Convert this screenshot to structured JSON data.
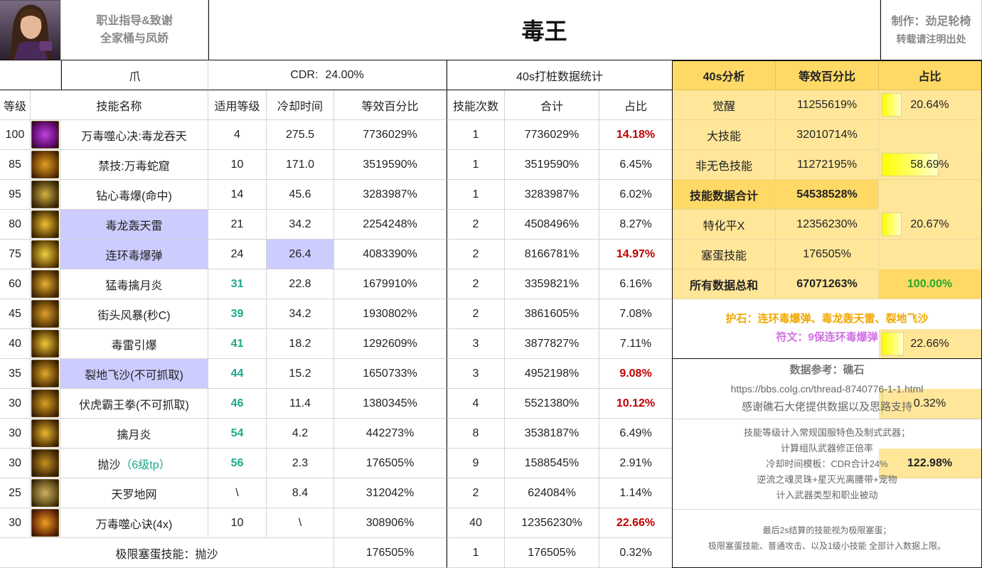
{
  "header": {
    "guide_line1": "职业指导&致谢",
    "guide_line2": "全家桶与凤娇",
    "title": "毒王",
    "author": "制作：劲足轮椅",
    "repost_note": "转载请注明出处"
  },
  "subheader": {
    "weapon": "爪",
    "cdr_label": "CDR:",
    "cdr_value": "24.00%",
    "stats_label": "40s打桩数据统计"
  },
  "columns": {
    "level": "等级",
    "skill_name": "技能名称",
    "req_level": "适用等级",
    "cooldown": "冷却时间",
    "percent": "等效百分比",
    "count": "技能次数",
    "total": "合计",
    "share": "占比"
  },
  "rows": [
    {
      "level": "100",
      "name": "万毒噬心决:毒龙吞天",
      "req": "4",
      "req_style": "",
      "cd": "275.5",
      "pct": "7736029%",
      "count": "1",
      "total": "7736029%",
      "share": "14.18%",
      "share_style": "red",
      "icon_colors": [
        "#5a0a6a",
        "#c040e0"
      ]
    },
    {
      "level": "85",
      "name": "禁技:万毒蛇窟",
      "req": "10",
      "req_style": "",
      "cd": "171.0",
      "pct": "3519590%",
      "count": "1",
      "total": "3519590%",
      "share": "6.45%",
      "share_style": "",
      "icon_colors": [
        "#6a3a08",
        "#e0a020"
      ]
    },
    {
      "level": "95",
      "name": "钻心毒爆(命中)",
      "req": "14",
      "req_style": "",
      "cd": "45.6",
      "pct": "3283987%",
      "count": "1",
      "total": "3283987%",
      "share": "6.02%",
      "share_style": "",
      "icon_colors": [
        "#4a3a10",
        "#d8b040"
      ]
    },
    {
      "level": "80",
      "name": "毒龙轰天雷",
      "req": "21",
      "req_style": "",
      "cd": "34.2",
      "pct": "2254248%",
      "count": "2",
      "total": "4508496%",
      "share": "8.27%",
      "share_style": "",
      "icon_colors": [
        "#5a4008",
        "#f0c030"
      ],
      "hl_name": true
    },
    {
      "level": "75",
      "name": "连环毒爆弹",
      "req": "24",
      "req_style": "",
      "cd": "26.4",
      "pct": "4083390%",
      "count": "2",
      "total": "8166781%",
      "share": "14.97%",
      "share_style": "red",
      "icon_colors": [
        "#6a4a08",
        "#f0d040"
      ],
      "hl_name": true,
      "hl_cd": true
    },
    {
      "level": "60",
      "name": "猛毒擒月炎",
      "req": "31",
      "req_style": "teal",
      "cd": "22.8",
      "pct": "1679910%",
      "count": "2",
      "total": "3359821%",
      "share": "6.16%",
      "share_style": "",
      "icon_colors": [
        "#5a3a08",
        "#e8b030"
      ]
    },
    {
      "level": "45",
      "name": "街头风暴(秒C)",
      "req": "39",
      "req_style": "teal",
      "cd": "34.2",
      "pct": "1930802%",
      "count": "2",
      "total": "3861605%",
      "share": "7.08%",
      "share_style": "",
      "icon_colors": [
        "#5a3a08",
        "#e0a028"
      ]
    },
    {
      "level": "40",
      "name": "毒雷引爆",
      "req": "41",
      "req_style": "teal",
      "cd": "18.2",
      "pct": "1292609%",
      "count": "3",
      "total": "3877827%",
      "share": "7.11%",
      "share_style": "",
      "icon_colors": [
        "#604008",
        "#f0c838"
      ]
    },
    {
      "level": "35",
      "name": "裂地飞沙(不可抓取)",
      "req": "44",
      "req_style": "teal",
      "cd": "15.2",
      "pct": "1650733%",
      "count": "3",
      "total": "4952198%",
      "share": "9.08%",
      "share_style": "red",
      "icon_colors": [
        "#5a3808",
        "#e0a828"
      ],
      "hl_name": true
    },
    {
      "level": "30",
      "name": "伏虎霸王拳(不可抓取)",
      "req": "46",
      "req_style": "teal",
      "cd": "11.4",
      "pct": "1380345%",
      "count": "4",
      "total": "5521380%",
      "share": "10.12%",
      "share_style": "red",
      "icon_colors": [
        "#5a3808",
        "#d8a020"
      ]
    },
    {
      "level": "30",
      "name": "擒月炎",
      "req": "54",
      "req_style": "teal",
      "cd": "4.2",
      "pct": "442273%",
      "count": "8",
      "total": "3538187%",
      "share": "6.49%",
      "share_style": "",
      "icon_colors": [
        "#5a3a08",
        "#e8b830"
      ]
    },
    {
      "level": "30",
      "name": "抛沙",
      "name_extra": "（6级tp）",
      "req": "56",
      "req_style": "teal",
      "cd": "2.3",
      "pct": "176505%",
      "count": "9",
      "total": "1588545%",
      "share": "2.91%",
      "share_style": "",
      "icon_colors": [
        "#4a3008",
        "#c89020"
      ]
    },
    {
      "level": "25",
      "name": "天罗地网",
      "req": "\\",
      "req_style": "",
      "cd": "8.4",
      "pct": "312042%",
      "count": "2",
      "total": "624084%",
      "share": "1.14%",
      "share_style": "",
      "icon_colors": [
        "#5a4818",
        "#d0b060"
      ]
    },
    {
      "level": "30",
      "name": "万毒噬心诀(4x)",
      "req": "10",
      "req_style": "",
      "cd": "\\",
      "pct": "308906%",
      "count": "40",
      "total": "12356230%",
      "share": "22.66%",
      "share_style": "red",
      "icon_colors": [
        "#6a2a08",
        "#f0a020"
      ]
    }
  ],
  "footer_row": {
    "label": "极限塞蛋技能：抛沙",
    "pct": "176505%",
    "count": "1",
    "total": "176505%",
    "share": "0.32%"
  },
  "analysis": {
    "title": "40s分析",
    "col_percent": "等效百分比",
    "col_share": "占比",
    "rows": [
      {
        "label": "觉醒",
        "value": "11255619%",
        "share": "20.64%",
        "fill": 0.2064
      },
      {
        "label": "大技能",
        "value": "32010714%",
        "share": "58.69%",
        "fill": 0.5869
      },
      {
        "label": "非无色技能",
        "value": "11272195%",
        "share": "20.67%",
        "fill": 0.2067
      },
      {
        "label": "技能数据合计",
        "value": "54538528%",
        "share": "100.00%",
        "fill": 0,
        "total": true
      },
      {
        "label": "特化平X",
        "value": "12356230%",
        "share": "22.66%",
        "fill": 0.2266
      },
      {
        "label": "塞蛋技能",
        "value": "176505%",
        "share": "0.32%",
        "fill": 0.0032
      },
      {
        "label": "所有数据总和",
        "value": "67071263%",
        "share": "122.98%",
        "fill": 0,
        "grand": true
      }
    ]
  },
  "notes": {
    "stones": "护石：连环毒爆弹、毒龙轰天雷、裂地飞沙",
    "runes": "符文：9保连环毒爆弹",
    "ref_title": "数据参考：礁石",
    "ref_url": "https://bbs.colg.cn/thread-8740776-1-1.html",
    "ref_thanks": "感谢礁石大佬提供数据以及思路支持",
    "rule1": "技能等级计入常规国服特色及制式武器；",
    "rule2": "计算组队武器修正倍率",
    "rule3": "冷却时间模板：CDR合计24%",
    "rule4": "逆流之魂灵珠+星灭光离腰带+宠物",
    "rule5": "计入武器类型和职业被动",
    "last1": "最后2s结算的技能视为极限塞蛋；",
    "last2": "极限塞蛋技能、普通攻击、以及1级小技能 全部计入数据上限。"
  }
}
